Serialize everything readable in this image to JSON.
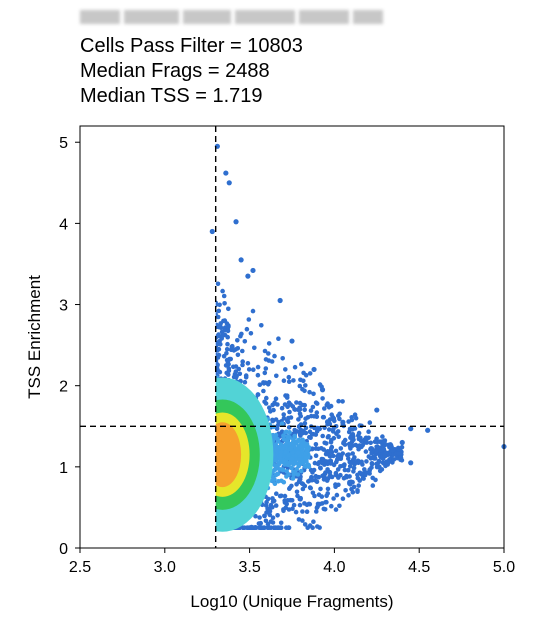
{
  "header": {
    "stats": [
      "Cells Pass Filter = 10803",
      "Median Frags = 2488",
      "Median TSS = 1.719"
    ]
  },
  "chart_data": {
    "type": "scatter",
    "title": "",
    "xlabel": "Log10 (Unique Fragments)",
    "ylabel": "TSS Enrichment",
    "xlim": [
      2.5,
      5.0
    ],
    "ylim": [
      0,
      5.2
    ],
    "xticks": [
      "2.5",
      "3.0",
      "3.5",
      "4.0",
      "4.5",
      "5.0"
    ],
    "yticks": [
      "0",
      "1",
      "2",
      "3",
      "4",
      "5"
    ],
    "grid": false,
    "color_scale": "point density (blue → cyan → green → yellow → orange)",
    "colors": [
      "#2f6fcf",
      "#3fa0e8",
      "#52d3d6",
      "#34c75a",
      "#e6e62a",
      "#f6a12e"
    ],
    "thresholds": {
      "x": 3.3,
      "y": 1.5
    },
    "density_core": {
      "x": 3.38,
      "y": 1.15
    },
    "outliers": [
      [
        3.31,
        4.95
      ],
      [
        3.36,
        4.62
      ],
      [
        3.38,
        4.5
      ],
      [
        3.42,
        4.02
      ],
      [
        3.28,
        3.9
      ],
      [
        3.45,
        3.55
      ],
      [
        3.52,
        3.42
      ],
      [
        3.49,
        3.35
      ],
      [
        3.68,
        3.05
      ],
      [
        3.75,
        2.55
      ],
      [
        3.88,
        2.2
      ],
      [
        3.93,
        1.95
      ],
      [
        4.05,
        1.55
      ],
      [
        4.25,
        1.7
      ],
      [
        4.45,
        1.47
      ],
      [
        4.55,
        1.45
      ],
      [
        4.4,
        1.3
      ],
      [
        4.45,
        1.05
      ],
      [
        5.0,
        1.25
      ]
    ]
  }
}
